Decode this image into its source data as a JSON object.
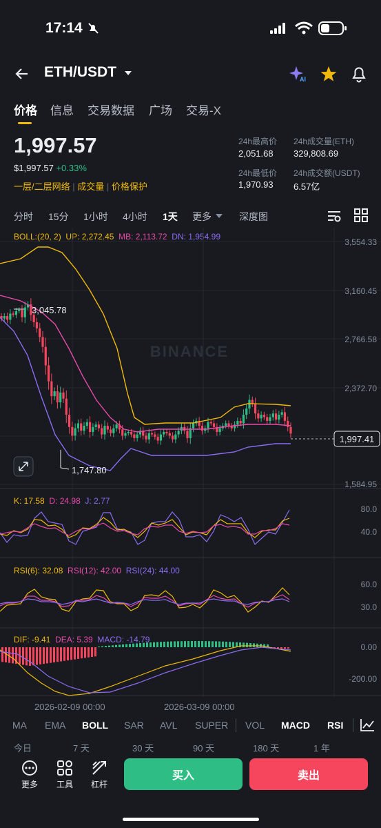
{
  "status": {
    "time": "17:14"
  },
  "header": {
    "pair": "ETH/USDT"
  },
  "tabs": [
    "价格",
    "信息",
    "交易数据",
    "广场",
    "交易-X"
  ],
  "price": {
    "last": "1,997.57",
    "usd": "$1,997.57",
    "change": "+0.33%",
    "links": [
      "一层/二层网络",
      "成交量",
      "价格保护"
    ]
  },
  "stats": {
    "high_label": "24h最高价",
    "high": "2,051.68",
    "vol_eth_label": "24h成交量(ETH)",
    "vol_eth": "329,808.69",
    "low_label": "24h最低价",
    "low": "1,970.93",
    "vol_usdt_label": "24h成交额(USDT)",
    "vol_usdt": "6.57亿"
  },
  "intervals": [
    "分时",
    "15分",
    "1小时",
    "4小时",
    "1天",
    "更多",
    "深度图"
  ],
  "boll": {
    "name": "BOLL:(20, 2)",
    "up": "UP: 2,272.45",
    "mb": "MB: 2,113.72",
    "dn": "DN: 1,954.99"
  },
  "main_axis": [
    "3,554.33",
    "3,160.45",
    "2,766.58",
    "2,372.70",
    "1,584.95"
  ],
  "current_tag": "1,997.41",
  "high_mark": "3,045.78",
  "low_mark": "1,747.80",
  "watermark": "BINANCE",
  "kdj": {
    "k": "K: 17.58",
    "d": "D: 24.98",
    "j": "J: 2.77",
    "axis": [
      "80.0",
      "40.0"
    ]
  },
  "rsi": {
    "r6": "RSI(6): 32.08",
    "r12": "RSI(12): 42.00",
    "r24": "RSI(24): 44.00",
    "axis": [
      "60.0",
      "30.0"
    ]
  },
  "macd": {
    "dif": "DIF: -9.41",
    "dea": "DEA: 5.39",
    "macd": "MACD: -14.79",
    "axis": [
      "0.00",
      "-200.00"
    ]
  },
  "dates": [
    "2026-02-09 00:00",
    "2026-03-09 00:00"
  ],
  "indicator_tabs": [
    "MA",
    "EMA",
    "BOLL",
    "SAR",
    "AVL",
    "SUPER",
    "VOL",
    "MACD",
    "RSI"
  ],
  "ranges": [
    "今日",
    "7 天",
    "30 天",
    "90 天",
    "180 天",
    "1 年"
  ],
  "tools": [
    "更多",
    "工具",
    "杠杆"
  ],
  "actions": {
    "buy": "买入",
    "sell": "卖出"
  },
  "colors": {
    "up": "#2ebd85",
    "down": "#f6465d",
    "accent": "#f0b90b",
    "boll_up": "#f0b90b",
    "boll_mb": "#e84aa9",
    "boll_dn": "#8c6cf2"
  }
}
